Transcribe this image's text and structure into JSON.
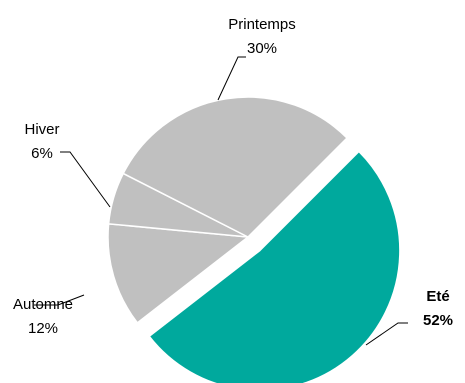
{
  "chart_data": {
    "type": "pie",
    "title": "",
    "slices": [
      {
        "name": "Eté",
        "value": 52,
        "label": "52%",
        "color": "#00a99d",
        "exploded": true,
        "bold": true
      },
      {
        "name": "Automne",
        "value": 12,
        "label": "12%",
        "color": "#c0c0c0",
        "exploded": false,
        "bold": false
      },
      {
        "name": "Hiver",
        "value": 6,
        "label": "6%",
        "color": "#c0c0c0",
        "exploded": false,
        "bold": false
      },
      {
        "name": "Printemps",
        "value": 30,
        "label": "30%",
        "color": "#c0c0c0",
        "exploded": false,
        "bold": false
      }
    ],
    "legend": "none"
  }
}
